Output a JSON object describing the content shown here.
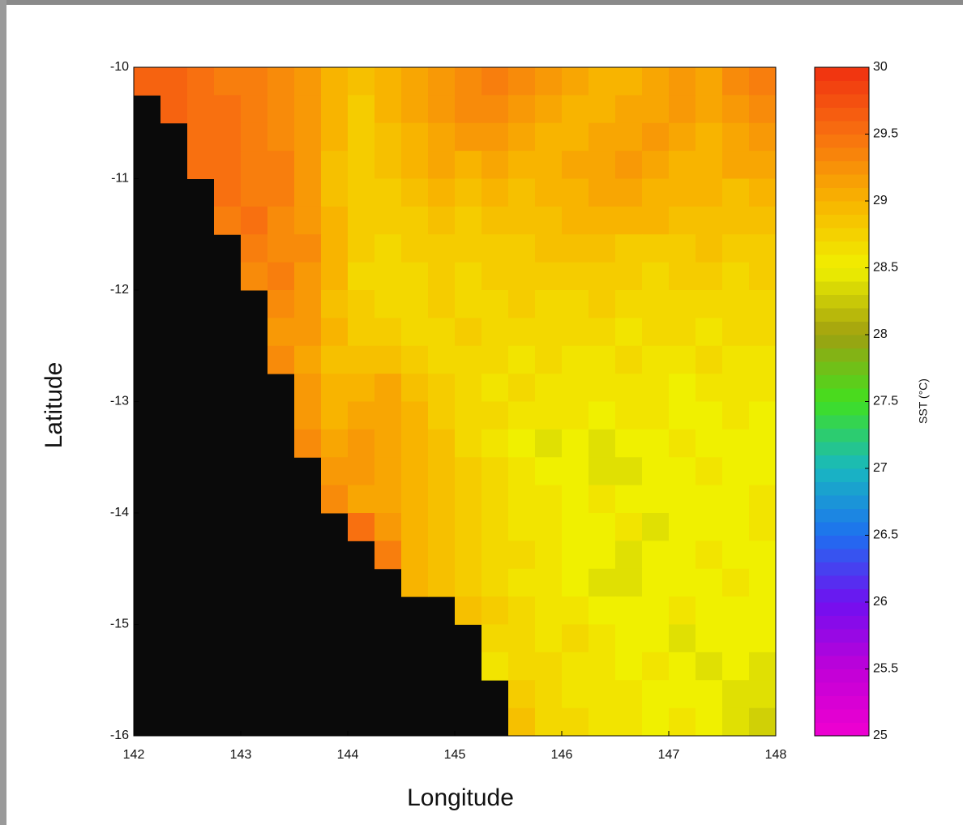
{
  "chart_data": {
    "type": "heatmap",
    "xlabel": "Longitude",
    "ylabel": "Latitude",
    "xlim": [
      142,
      148
    ],
    "ylim": [
      -16,
      -10
    ],
    "xticks": [
      142,
      143,
      144,
      145,
      146,
      147,
      148
    ],
    "yticks": [
      -10,
      -11,
      -12,
      -13,
      -14,
      -15,
      -16
    ],
    "null_color": "#0a0a0a",
    "values": [
      [
        29.6,
        29.6,
        29.5,
        29.4,
        29.4,
        29.3,
        29.2,
        29.0,
        28.9,
        29.0,
        29.1,
        29.2,
        29.3,
        29.4,
        29.3,
        29.2,
        29.1,
        29.0,
        29.0,
        29.1,
        29.2,
        29.1,
        29.3,
        29.4
      ],
      [
        null,
        29.6,
        29.5,
        29.5,
        29.4,
        29.3,
        29.2,
        29.0,
        28.8,
        29.0,
        29.1,
        29.2,
        29.3,
        29.3,
        29.2,
        29.1,
        29.0,
        29.0,
        29.1,
        29.1,
        29.2,
        29.1,
        29.2,
        29.3
      ],
      [
        null,
        null,
        29.5,
        29.5,
        29.4,
        29.3,
        29.2,
        29.0,
        28.8,
        28.9,
        29.0,
        29.1,
        29.2,
        29.2,
        29.1,
        29.0,
        29.0,
        29.1,
        29.1,
        29.2,
        29.1,
        29.0,
        29.1,
        29.2
      ],
      [
        null,
        null,
        29.5,
        29.5,
        29.4,
        29.4,
        29.2,
        28.9,
        28.8,
        28.9,
        29.0,
        29.1,
        29.0,
        29.1,
        29.0,
        29.0,
        29.1,
        29.1,
        29.2,
        29.1,
        29.0,
        29.0,
        29.1,
        29.1
      ],
      [
        null,
        null,
        null,
        29.5,
        29.4,
        29.4,
        29.2,
        28.9,
        28.8,
        28.8,
        28.9,
        29.0,
        28.9,
        29.0,
        28.9,
        29.0,
        29.0,
        29.1,
        29.1,
        29.0,
        29.0,
        29.0,
        28.9,
        29.0
      ],
      [
        null,
        null,
        null,
        29.4,
        29.5,
        29.3,
        29.2,
        29.0,
        28.8,
        28.8,
        28.8,
        28.9,
        28.8,
        28.9,
        28.9,
        28.9,
        29.0,
        29.0,
        29.0,
        29.0,
        28.9,
        28.9,
        28.9,
        28.9
      ],
      [
        null,
        null,
        null,
        null,
        29.4,
        29.3,
        29.3,
        29.0,
        28.8,
        28.7,
        28.8,
        28.8,
        28.8,
        28.8,
        28.8,
        28.9,
        28.9,
        28.9,
        28.8,
        28.8,
        28.8,
        28.9,
        28.8,
        28.8
      ],
      [
        null,
        null,
        null,
        null,
        29.3,
        29.4,
        29.2,
        29.0,
        28.7,
        28.7,
        28.7,
        28.8,
        28.7,
        28.8,
        28.8,
        28.8,
        28.8,
        28.8,
        28.8,
        28.7,
        28.8,
        28.8,
        28.7,
        28.8
      ],
      [
        null,
        null,
        null,
        null,
        null,
        29.3,
        29.2,
        28.9,
        28.8,
        28.7,
        28.7,
        28.8,
        28.7,
        28.7,
        28.8,
        28.7,
        28.7,
        28.8,
        28.7,
        28.7,
        28.7,
        28.7,
        28.7,
        28.7
      ],
      [
        null,
        null,
        null,
        null,
        null,
        29.2,
        29.2,
        29.0,
        28.8,
        28.8,
        28.7,
        28.7,
        28.8,
        28.7,
        28.7,
        28.7,
        28.7,
        28.7,
        28.6,
        28.7,
        28.7,
        28.6,
        28.7,
        28.7
      ],
      [
        null,
        null,
        null,
        null,
        null,
        29.3,
        29.1,
        28.9,
        28.9,
        28.9,
        28.8,
        28.7,
        28.7,
        28.7,
        28.6,
        28.7,
        28.6,
        28.6,
        28.7,
        28.6,
        28.6,
        28.7,
        28.6,
        28.6
      ],
      [
        null,
        null,
        null,
        null,
        null,
        null,
        29.2,
        29.0,
        29.0,
        29.1,
        28.9,
        28.8,
        28.7,
        28.6,
        28.7,
        28.6,
        28.6,
        28.6,
        28.6,
        28.6,
        28.5,
        28.6,
        28.6,
        28.6
      ],
      [
        null,
        null,
        null,
        null,
        null,
        null,
        29.2,
        29.0,
        29.1,
        29.1,
        29.0,
        28.8,
        28.7,
        28.7,
        28.6,
        28.6,
        28.6,
        28.5,
        28.6,
        28.6,
        28.5,
        28.5,
        28.6,
        28.5
      ],
      [
        null,
        null,
        null,
        null,
        null,
        null,
        29.3,
        29.1,
        29.2,
        29.1,
        29.0,
        28.9,
        28.7,
        28.6,
        28.5,
        28.4,
        28.5,
        28.4,
        28.5,
        28.5,
        28.6,
        28.5,
        28.5,
        28.5
      ],
      [
        null,
        null,
        null,
        null,
        null,
        null,
        null,
        29.2,
        29.2,
        29.1,
        29.0,
        28.9,
        28.8,
        28.7,
        28.6,
        28.5,
        28.5,
        28.4,
        28.4,
        28.5,
        28.5,
        28.6,
        28.5,
        28.5
      ],
      [
        null,
        null,
        null,
        null,
        null,
        null,
        null,
        29.3,
        29.1,
        29.1,
        29.0,
        28.9,
        28.8,
        28.7,
        28.6,
        28.6,
        28.5,
        28.6,
        28.5,
        28.5,
        28.5,
        28.5,
        28.5,
        28.6
      ],
      [
        null,
        null,
        null,
        null,
        null,
        null,
        null,
        null,
        29.5,
        29.2,
        29.0,
        28.9,
        28.8,
        28.7,
        28.6,
        28.6,
        28.5,
        28.5,
        28.6,
        28.4,
        28.5,
        28.5,
        28.5,
        28.6
      ],
      [
        null,
        null,
        null,
        null,
        null,
        null,
        null,
        null,
        null,
        29.4,
        29.0,
        28.9,
        28.8,
        28.7,
        28.7,
        28.6,
        28.5,
        28.5,
        28.4,
        28.5,
        28.5,
        28.6,
        28.5,
        28.5
      ],
      [
        null,
        null,
        null,
        null,
        null,
        null,
        null,
        null,
        null,
        null,
        29.0,
        28.9,
        28.8,
        28.7,
        28.6,
        28.6,
        28.5,
        28.4,
        28.4,
        28.5,
        28.5,
        28.5,
        28.6,
        28.5
      ],
      [
        null,
        null,
        null,
        null,
        null,
        null,
        null,
        null,
        null,
        null,
        null,
        null,
        28.9,
        28.8,
        28.7,
        28.6,
        28.6,
        28.5,
        28.5,
        28.5,
        28.6,
        28.5,
        28.5,
        28.5
      ],
      [
        null,
        null,
        null,
        null,
        null,
        null,
        null,
        null,
        null,
        null,
        null,
        null,
        null,
        28.7,
        28.7,
        28.6,
        28.7,
        28.6,
        28.5,
        28.5,
        28.4,
        28.5,
        28.5,
        28.5
      ],
      [
        null,
        null,
        null,
        null,
        null,
        null,
        null,
        null,
        null,
        null,
        null,
        null,
        null,
        28.6,
        28.7,
        28.7,
        28.6,
        28.6,
        28.5,
        28.6,
        28.5,
        28.4,
        28.5,
        28.4
      ],
      [
        null,
        null,
        null,
        null,
        null,
        null,
        null,
        null,
        null,
        null,
        null,
        null,
        null,
        null,
        28.8,
        28.7,
        28.6,
        28.6,
        28.6,
        28.5,
        28.5,
        28.5,
        28.4,
        28.4
      ],
      [
        null,
        null,
        null,
        null,
        null,
        null,
        null,
        null,
        null,
        null,
        null,
        null,
        null,
        null,
        28.9,
        28.7,
        28.7,
        28.6,
        28.6,
        28.5,
        28.6,
        28.5,
        28.4,
        28.3
      ]
    ],
    "colorbar": {
      "label": "SST (°C)",
      "clim": [
        25,
        30
      ],
      "ticks": [
        25,
        25.5,
        26,
        26.5,
        27,
        27.5,
        28,
        28.5,
        29,
        29.5,
        30
      ],
      "colors": [
        "#f000d0",
        "#c000d8",
        "#7010f0",
        "#1e70f0",
        "#18b8c0",
        "#40e020",
        "#a0a010",
        "#f0f000",
        "#f8b400",
        "#f87010",
        "#f03010"
      ]
    }
  }
}
